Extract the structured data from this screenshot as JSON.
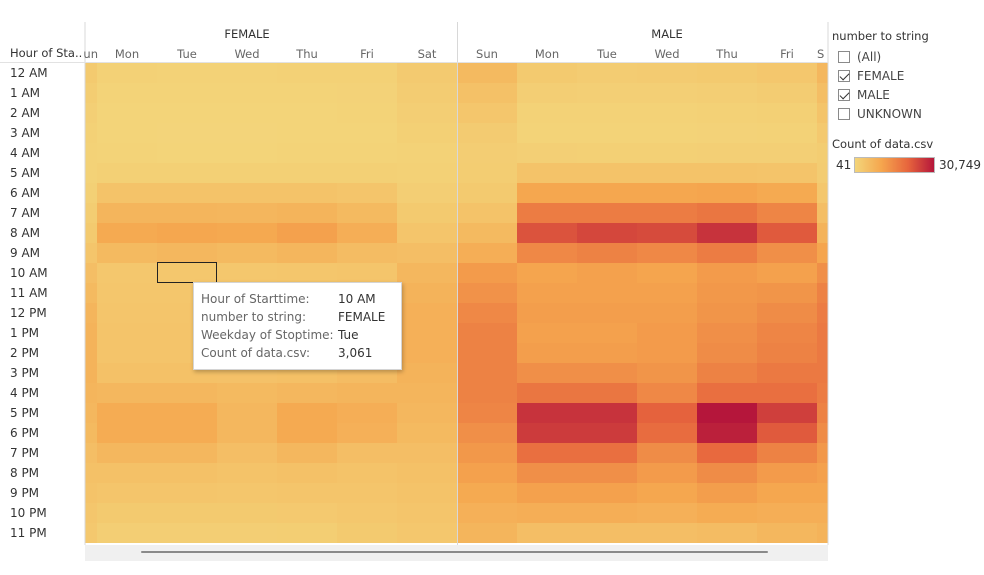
{
  "row_axis_title": "Hour of Sta..",
  "panels": [
    {
      "name": "FEMALE",
      "visible_days": [
        "un",
        "Mon",
        "Tue",
        "Wed",
        "Thu",
        "Fri",
        "Sat"
      ]
    },
    {
      "name": "MALE",
      "visible_days": [
        "Sun",
        "Mon",
        "Tue",
        "Wed",
        "Thu",
        "Fri",
        "S"
      ]
    }
  ],
  "filter": {
    "title": "number to string",
    "items": [
      {
        "label": "(All)",
        "checked": false
      },
      {
        "label": "FEMALE",
        "checked": true
      },
      {
        "label": "MALE",
        "checked": true
      },
      {
        "label": "UNKNOWN",
        "checked": false
      }
    ]
  },
  "color_legend": {
    "title": "Count of data.csv",
    "min_label": "41",
    "max_label": "30,749",
    "colors": [
      "#f3d57a",
      "#f5a64e",
      "#e7663d",
      "#b5163b"
    ]
  },
  "tooltip": {
    "rows": [
      {
        "key": "Hour of Starttime:",
        "value": "10 AM"
      },
      {
        "key": "number to string:",
        "value": "FEMALE"
      },
      {
        "key": "Weekday of Stoptime:",
        "value": "Tue"
      },
      {
        "key": "Count of data.csv:",
        "value": "3,061"
      }
    ]
  },
  "chart_data": {
    "type": "heatmap",
    "title": "",
    "rows": [
      "12 AM",
      "1 AM",
      "2 AM",
      "3 AM",
      "4 AM",
      "5 AM",
      "6 AM",
      "7 AM",
      "8 AM",
      "9 AM",
      "10 AM",
      "11 AM",
      "12 PM",
      "1 PM",
      "2 PM",
      "3 PM",
      "4 PM",
      "5 PM",
      "6 PM",
      "7 PM",
      "8 PM",
      "9 PM",
      "10 PM",
      "11 PM"
    ],
    "columns": [
      "Sun",
      "Mon",
      "Tue",
      "Wed",
      "Thu",
      "Fri",
      "Sat"
    ],
    "color_min": 41,
    "color_max": 30749,
    "series": [
      {
        "name": "FEMALE",
        "values": [
          [
            2500,
            1000,
            800,
            800,
            900,
            1000,
            2400
          ],
          [
            1800,
            500,
            400,
            450,
            500,
            600,
            1900
          ],
          [
            1300,
            300,
            250,
            250,
            300,
            400,
            1500
          ],
          [
            900,
            200,
            150,
            150,
            200,
            250,
            1100
          ],
          [
            700,
            400,
            350,
            350,
            400,
            400,
            800
          ],
          [
            800,
            1200,
            1100,
            1100,
            1200,
            1100,
            900
          ],
          [
            1200,
            4000,
            4000,
            3900,
            4000,
            3500,
            1500
          ],
          [
            1800,
            7000,
            7000,
            6900,
            7200,
            6000,
            2500
          ],
          [
            2500,
            9500,
            10000,
            9700,
            11000,
            8500,
            3500
          ],
          [
            3500,
            6000,
            6500,
            6000,
            6700,
            5500,
            5000
          ],
          [
            5000,
            3000,
            3061,
            3000,
            3200,
            3500,
            6500
          ],
          [
            6000,
            3300,
            3300,
            3300,
            3300,
            4000,
            7500
          ],
          [
            7000,
            3600,
            3600,
            3600,
            3700,
            4500,
            8000
          ],
          [
            7500,
            3700,
            3700,
            3700,
            3800,
            4700,
            8000
          ],
          [
            7500,
            3800,
            3800,
            3700,
            3900,
            4800,
            8000
          ],
          [
            7500,
            4500,
            4500,
            4300,
            4600,
            5500,
            7500
          ],
          [
            7000,
            6500,
            6500,
            6000,
            6500,
            7000,
            7000
          ],
          [
            6500,
            9000,
            9000,
            6500,
            9500,
            8500,
            6500
          ],
          [
            6000,
            9000,
            9000,
            6500,
            9500,
            8000,
            6000
          ],
          [
            5000,
            6500,
            6500,
            5000,
            6500,
            5000,
            5000
          ],
          [
            4500,
            4500,
            4500,
            4000,
            4500,
            4000,
            4500
          ],
          [
            4000,
            3500,
            3500,
            3300,
            3500,
            3500,
            4000
          ],
          [
            3300,
            2500,
            2500,
            2500,
            2600,
            3000,
            3500
          ],
          [
            2800,
            1500,
            1500,
            1500,
            1600,
            2500,
            3000
          ]
        ]
      },
      {
        "name": "MALE",
        "values": [
          [
            6000,
            2500,
            2000,
            2200,
            2500,
            3000,
            6500
          ],
          [
            4500,
            1500,
            1300,
            1300,
            1500,
            2000,
            5000
          ],
          [
            3300,
            800,
            800,
            800,
            900,
            1200,
            3800
          ],
          [
            2200,
            500,
            500,
            500,
            600,
            800,
            2600
          ],
          [
            1700,
            1300,
            1200,
            1200,
            1300,
            1300,
            1800
          ],
          [
            1800,
            4000,
            4000,
            3900,
            4000,
            3700,
            2000
          ],
          [
            2500,
            10000,
            10000,
            10000,
            10500,
            9500,
            3000
          ],
          [
            4000,
            17000,
            17000,
            17000,
            18000,
            15500,
            5000
          ],
          [
            6000,
            23000,
            24500,
            24000,
            27000,
            22000,
            7500
          ],
          [
            8500,
            15000,
            16000,
            15000,
            17000,
            14000,
            10500
          ],
          [
            12000,
            10500,
            11000,
            10500,
            12000,
            11000,
            14000
          ],
          [
            13500,
            11000,
            11000,
            11000,
            12500,
            13000,
            16000
          ],
          [
            15000,
            11500,
            11500,
            11500,
            13000,
            14500,
            17000
          ],
          [
            16000,
            11000,
            11000,
            12000,
            14000,
            15500,
            17500
          ],
          [
            16000,
            11500,
            11500,
            12000,
            14500,
            16000,
            17500
          ],
          [
            16000,
            14000,
            14000,
            13000,
            16000,
            17500,
            17500
          ],
          [
            16000,
            18000,
            18000,
            15000,
            19000,
            19000,
            17000
          ],
          [
            15500,
            27000,
            27000,
            21000,
            30749,
            25500,
            16000
          ],
          [
            14000,
            26000,
            26000,
            19500,
            29500,
            22000,
            14500
          ],
          [
            12500,
            19000,
            19000,
            14500,
            20000,
            16000,
            12500
          ],
          [
            11000,
            14000,
            14000,
            12000,
            14500,
            12000,
            11000
          ],
          [
            9500,
            11000,
            11000,
            10000,
            11500,
            10000,
            10000
          ],
          [
            8000,
            8500,
            8500,
            8000,
            9000,
            8500,
            8500
          ],
          [
            7000,
            5000,
            5000,
            5000,
            5500,
            6500,
            7500
          ]
        ]
      }
    ]
  }
}
